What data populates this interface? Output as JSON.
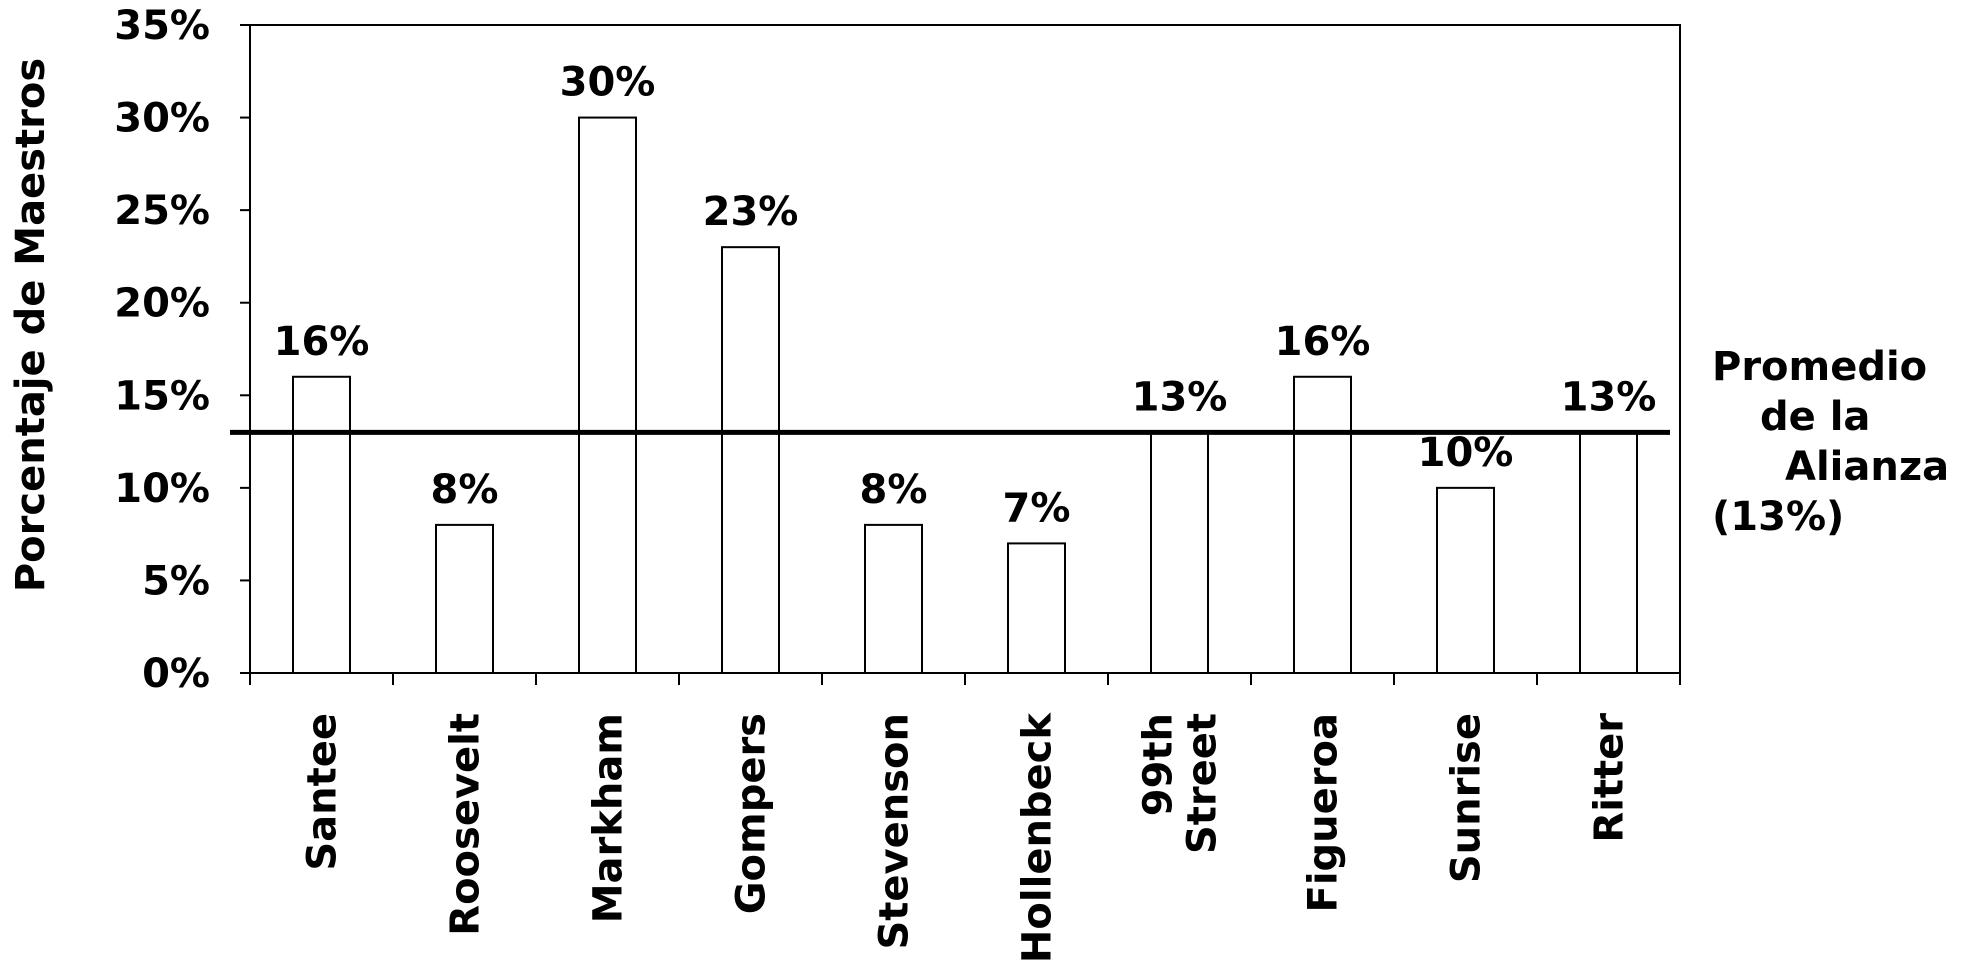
{
  "chart_data": {
    "type": "bar",
    "categories": [
      "Santee",
      "Roosevelt",
      "Markham",
      "Gompers",
      "Stevenson",
      "Hollenbeck",
      "99th Street",
      "Figueroa",
      "Sunrise",
      "Ritter"
    ],
    "category_label_lines": [
      [
        "Santee"
      ],
      [
        "Roosevelt"
      ],
      [
        "Markham"
      ],
      [
        "Gompers"
      ],
      [
        "Stevenson"
      ],
      [
        "Hollenbeck"
      ],
      [
        "99th",
        "Street"
      ],
      [
        "Figueroa"
      ],
      [
        "Sunrise"
      ],
      [
        "Ritter"
      ]
    ],
    "values": [
      16,
      8,
      30,
      23,
      8,
      7,
      13,
      16,
      10,
      13
    ],
    "data_labels": [
      "16%",
      "8%",
      "30%",
      "23%",
      "8%",
      "7%",
      "13%",
      "16%",
      "10%",
      "13%"
    ],
    "ylabel": "Porcentaje de Maestros",
    "xlabel": "",
    "ylim": [
      0,
      35
    ],
    "y_ticks": [
      0,
      5,
      10,
      15,
      20,
      25,
      30,
      35
    ],
    "y_tick_labels": [
      "0%",
      "5%",
      "10%",
      "15%",
      "20%",
      "25%",
      "30%",
      "35%"
    ],
    "reference_line": {
      "value": 13,
      "label_lines": [
        "Promedio",
        "de la",
        "Alianza",
        "(13%)"
      ]
    },
    "grid": false,
    "legend": "none",
    "colors": {
      "bar_fill": "#ffffff",
      "bar_stroke": "#000000",
      "line": "#000000"
    }
  }
}
